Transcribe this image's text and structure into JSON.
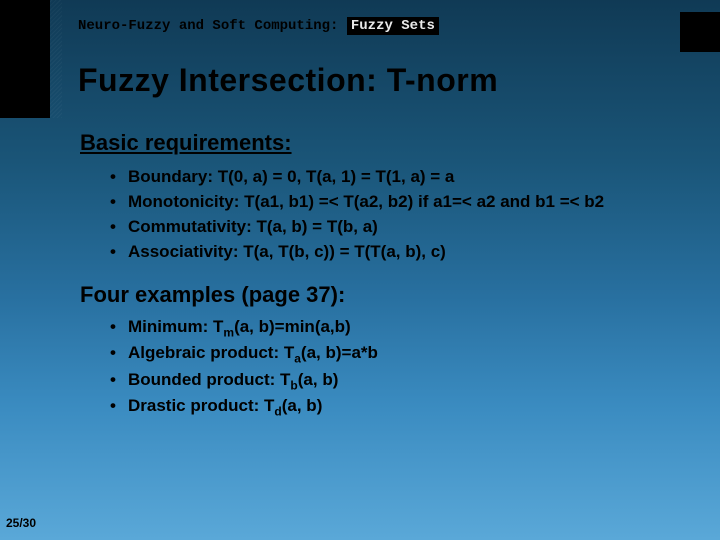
{
  "header": {
    "prefix": "Neuro-Fuzzy and Soft Computing:",
    "highlight": "Fuzzy Sets"
  },
  "title": "Fuzzy Intersection: T-norm",
  "sections": {
    "req_heading": "Basic requirements:",
    "requirements": [
      "Boundary: T(0, a) = 0, T(a, 1) = T(1, a) = a",
      "Monotonicity: T(a1, b1) =< T(a2, b2) if a1=< a2 and b1 =< b2",
      "Commutativity: T(a, b) = T(b, a)",
      "Associativity: T(a, T(b, c)) = T(T(a, b), c)"
    ],
    "ex_heading": "Four examples (page 37):",
    "examples": [
      {
        "label": "Minimum: T",
        "sub": "m",
        "rest": "(a, b)=min(a,b)"
      },
      {
        "label": "Algebraic product: T",
        "sub": "a",
        "rest": "(a, b)=a*b"
      },
      {
        "label": "Bounded product: T",
        "sub": "b",
        "rest": "(a, b)"
      },
      {
        "label": "Drastic product: T",
        "sub": "d",
        "rest": "(a, b)"
      }
    ]
  },
  "pagenum": "25/30",
  "style": {
    "bg_gradient": [
      "#103a55",
      "#1a5578",
      "#2870a0",
      "#3a8bc0",
      "#5aa8d8"
    ],
    "text_color": "#000000",
    "accent_black": "#000000",
    "title_fontsize": 32,
    "section_fontsize": 22,
    "bullet_fontsize": 17,
    "header_font": "Courier New",
    "body_font": "Arial"
  }
}
